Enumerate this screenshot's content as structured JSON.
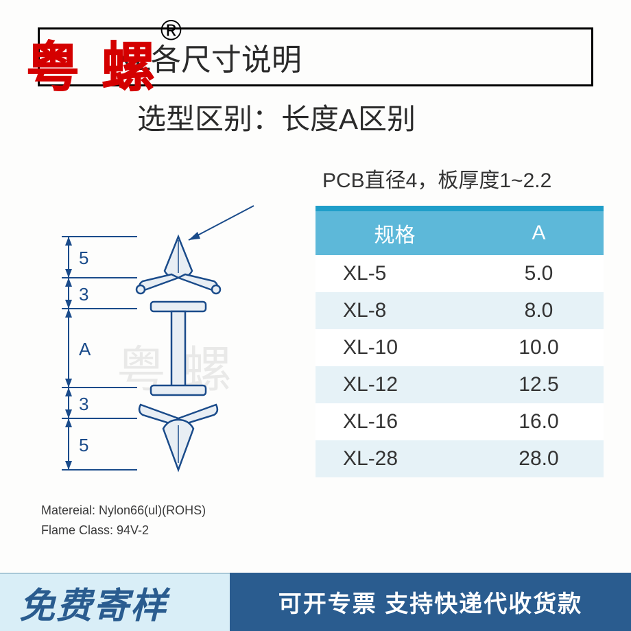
{
  "brand": "粤螺",
  "reg_mark": "®",
  "title": "XL各尺寸说明",
  "subtitle": "选型区别：长度A区别",
  "pcb_note": "PCB直径4，板厚度1~2.2",
  "diagram": {
    "dim_top1": "5",
    "dim_top2": "3",
    "dim_mid": "A",
    "dim_bot1": "3",
    "dim_bot2": "5"
  },
  "watermark": "粤螺",
  "table": {
    "header_bg": "#5db8d9",
    "header_accent": "#1f9ec9",
    "row_alt_bg": "#e6f2f7",
    "row_bg": "#ffffff",
    "col1_header": "规格",
    "col2_header": "A",
    "rows": [
      {
        "spec": "XL-5",
        "a": "5.0"
      },
      {
        "spec": "XL-8",
        "a": "8.0"
      },
      {
        "spec": "XL-10",
        "a": "10.0"
      },
      {
        "spec": "XL-12",
        "a": "12.5"
      },
      {
        "spec": "XL-16",
        "a": "16.0"
      },
      {
        "spec": "XL-28",
        "a": "28.0"
      }
    ]
  },
  "material": {
    "line1": "Matereial:  Nylon66(ul)(ROHS)",
    "line2": "Flame Class:  94V-2"
  },
  "footer": {
    "left": "免费寄样",
    "right": "可开专票  支持快递代收货款"
  }
}
